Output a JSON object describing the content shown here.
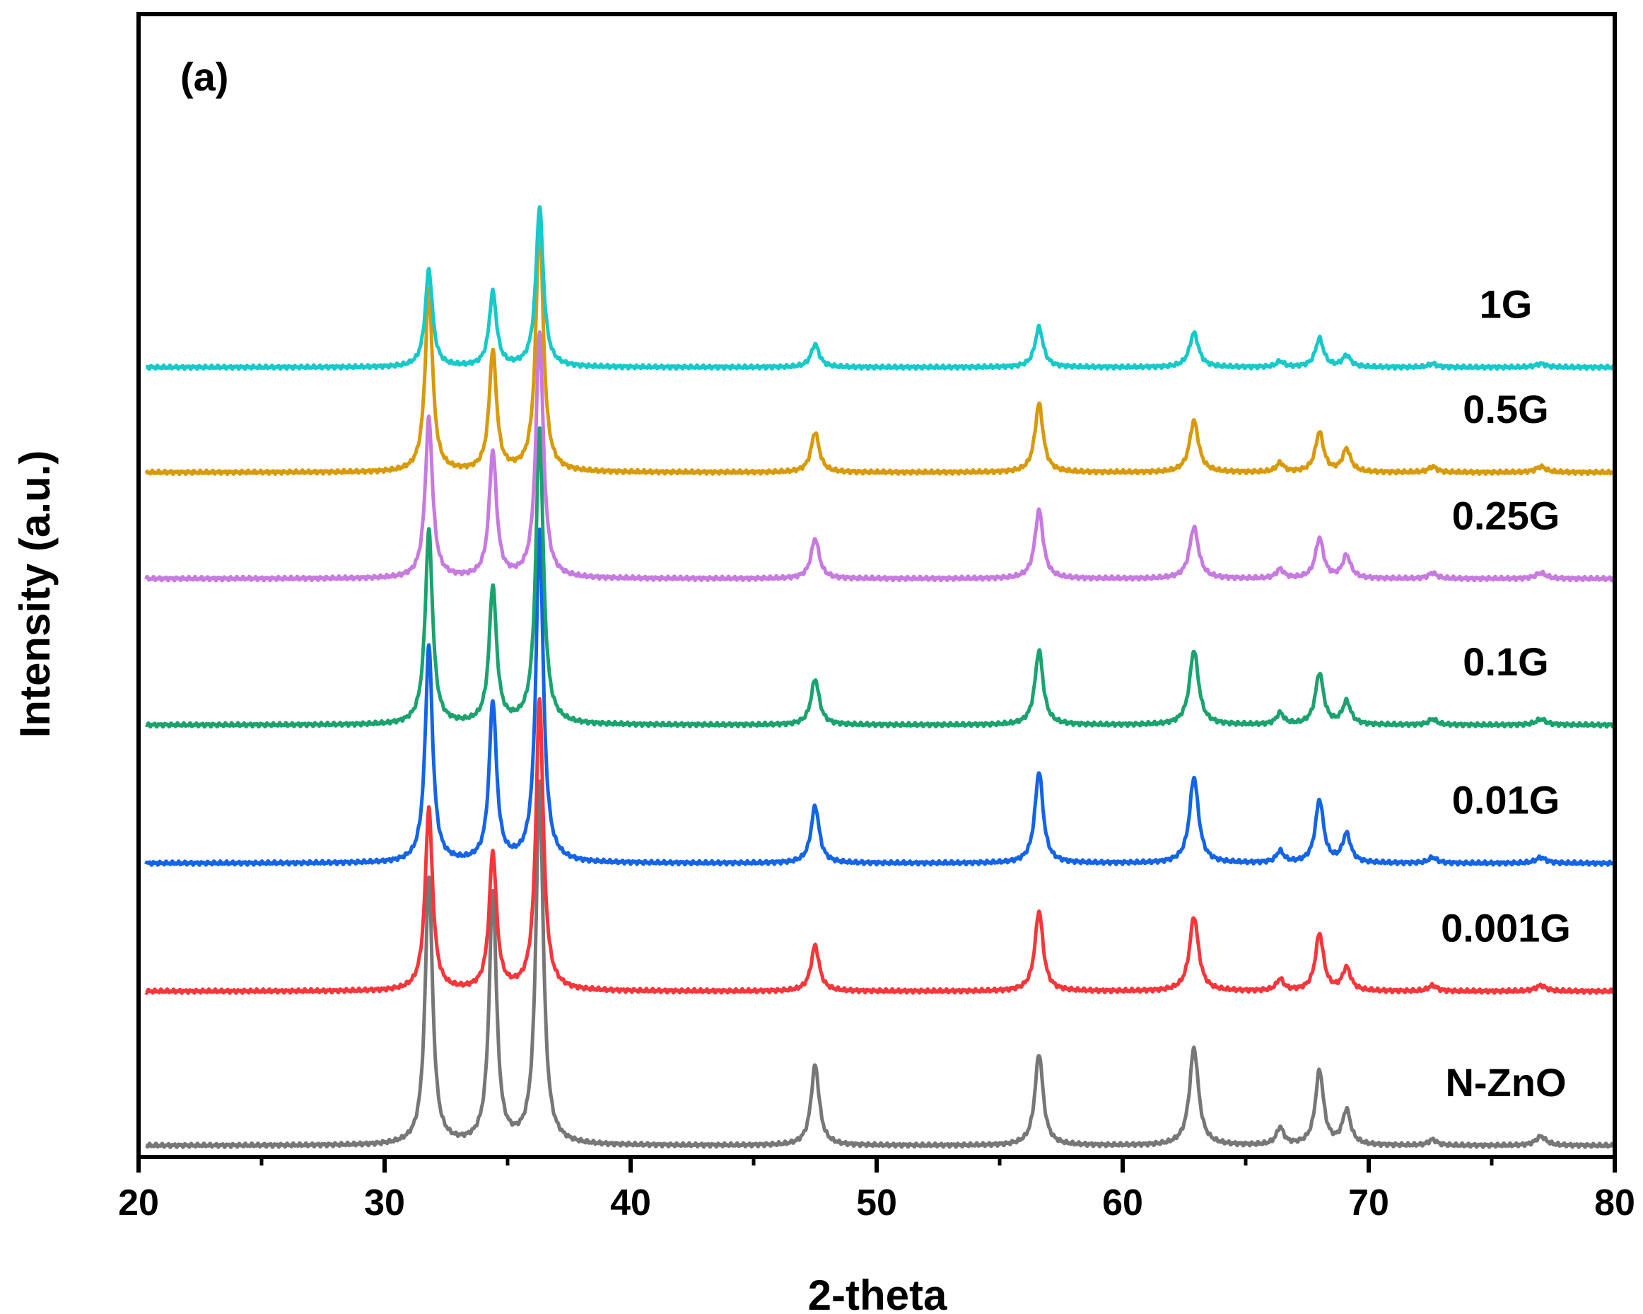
{
  "chart_data": {
    "type": "line",
    "panel_label": "(a)",
    "xlabel": "2-theta",
    "ylabel": "Intensity (a.u.)",
    "xlim": [
      20,
      80
    ],
    "xticks": [
      20,
      30,
      40,
      50,
      60,
      70,
      80
    ],
    "xticks_minor": [
      25,
      35,
      45,
      55,
      65,
      75
    ],
    "ylim": [
      0,
      100
    ],
    "yticks_shown": false,
    "grid": false,
    "peaks": [
      {
        "pos": 31.8,
        "width": 0.18
      },
      {
        "pos": 34.4,
        "width": 0.18
      },
      {
        "pos": 36.3,
        "width": 0.18
      },
      {
        "pos": 47.5,
        "width": 0.2
      },
      {
        "pos": 56.6,
        "width": 0.2
      },
      {
        "pos": 62.9,
        "width": 0.22
      },
      {
        "pos": 66.4,
        "width": 0.18
      },
      {
        "pos": 68.0,
        "width": 0.2
      },
      {
        "pos": 69.1,
        "width": 0.2
      },
      {
        "pos": 72.6,
        "width": 0.2
      },
      {
        "pos": 77.0,
        "width": 0.25
      }
    ],
    "series": [
      {
        "name": "N-ZnO",
        "color": "#777777",
        "baseline": 1.0,
        "heights": [
          23.5,
          22.0,
          31.5,
          7.0,
          8.0,
          8.5,
          1.5,
          6.5,
          3.0,
          0.5,
          0.8
        ]
      },
      {
        "name": "0.001G",
        "color": "#f5363a",
        "baseline": 14.5,
        "heights": [
          16.0,
          12.0,
          25.5,
          4.0,
          7.0,
          6.5,
          1.0,
          5.0,
          2.0,
          0.5,
          0.5
        ]
      },
      {
        "name": "0.01G",
        "color": "#1464e6",
        "baseline": 25.7,
        "heights": [
          19.0,
          14.0,
          29.0,
          5.0,
          8.0,
          7.5,
          1.0,
          5.5,
          2.5,
          0.5,
          0.5
        ]
      },
      {
        "name": "0.1G",
        "color": "#1aa36e",
        "baseline": 37.8,
        "heights": [
          17.0,
          12.0,
          26.0,
          4.0,
          6.5,
          6.5,
          1.0,
          4.5,
          2.0,
          0.5,
          0.5
        ]
      },
      {
        "name": "0.25G",
        "color": "#c77ae0",
        "baseline": 50.6,
        "heights": [
          14.0,
          11.0,
          21.5,
          3.5,
          6.0,
          4.5,
          0.8,
          3.5,
          2.0,
          0.5,
          0.5
        ]
      },
      {
        "name": "0.5G",
        "color": "#d99a0a",
        "baseline": 59.9,
        "heights": [
          16.0,
          10.5,
          22.0,
          3.5,
          6.0,
          4.5,
          0.8,
          3.5,
          2.0,
          0.5,
          0.5
        ]
      },
      {
        "name": "1G",
        "color": "#17c9c9",
        "baseline": 69.1,
        "heights": [
          8.5,
          6.5,
          14.0,
          2.0,
          3.5,
          3.0,
          0.5,
          2.5,
          1.0,
          0.3,
          0.3
        ]
      }
    ]
  }
}
